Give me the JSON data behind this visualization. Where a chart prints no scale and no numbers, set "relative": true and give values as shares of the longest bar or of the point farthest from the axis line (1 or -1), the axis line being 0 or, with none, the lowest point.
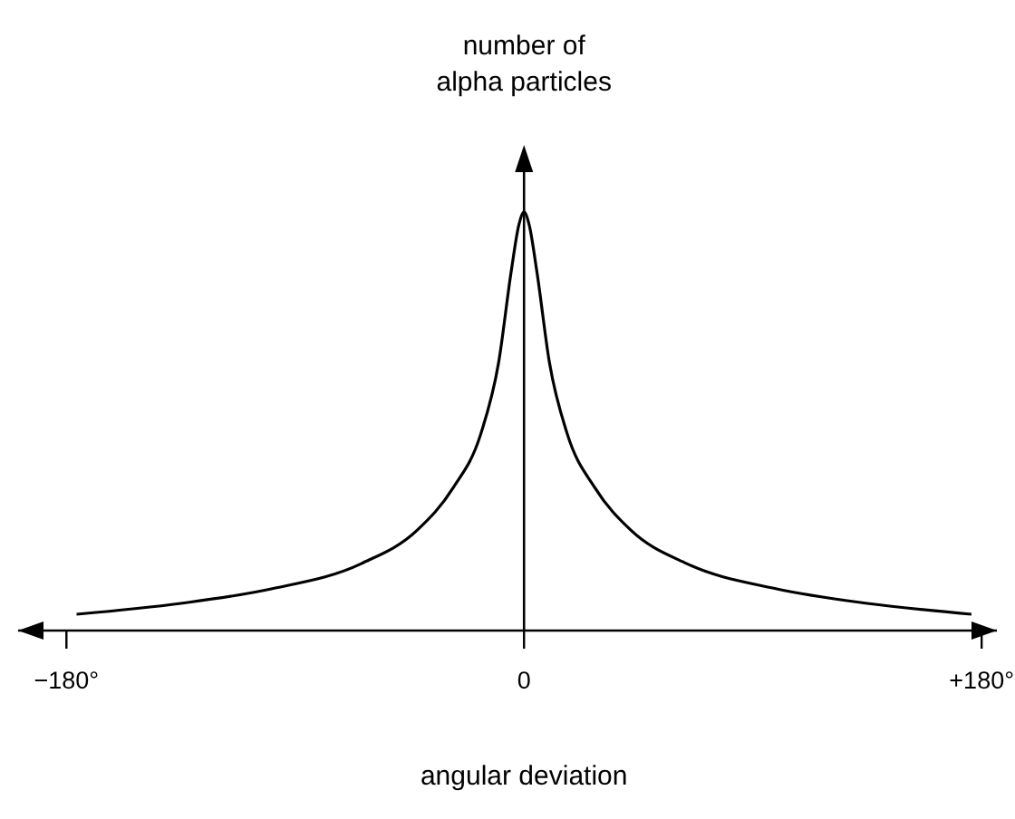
{
  "chart_data": {
    "type": "line",
    "relative": true,
    "xlabel": "angular deviation",
    "ylabel": "number of\nalpha particles",
    "xlim": [
      -199,
      186
    ],
    "xticks": [
      {
        "value": -180,
        "label": "−180°"
      },
      {
        "value": 0,
        "label": "0"
      },
      {
        "value": 180,
        "label": "+180°"
      }
    ],
    "series": [
      {
        "color": "#000000",
        "x": [
          -176,
          -135,
          -99,
          -64,
          -42,
          -28,
          -17,
          -10,
          -5,
          -2,
          0,
          2,
          5,
          10,
          17,
          28,
          42,
          64,
          99,
          135,
          176
        ],
        "values": [
          0.039,
          0.065,
          0.1,
          0.16,
          0.24,
          0.34,
          0.47,
          0.64,
          0.86,
          0.97,
          1,
          0.97,
          0.86,
          0.64,
          0.47,
          0.34,
          0.24,
          0.16,
          0.1,
          0.065,
          0.039
        ]
      }
    ],
    "marker": "none",
    "line_style": "solid"
  }
}
